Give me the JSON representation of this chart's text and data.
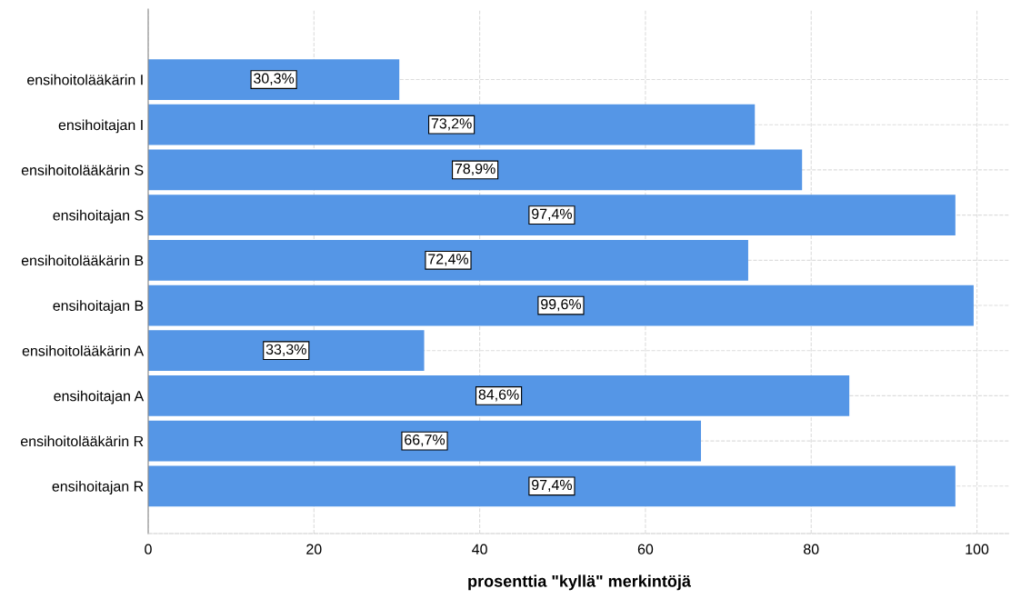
{
  "chart_data": {
    "type": "bar",
    "orientation": "horizontal",
    "xlabel": "prosenttia \"kyllä\" merkintöjä",
    "categories": [
      "ensihoitolääkärin I",
      "ensihoitajan I",
      "ensihoitolääkärin S",
      "ensihoitajan S",
      "ensihoitolääkärin B",
      "ensihoitajan B",
      "ensihoitolääkärin A",
      "ensihoitajan A",
      "ensihoitolääkärin R",
      "ensihoitajan R"
    ],
    "values": [
      30.3,
      73.2,
      78.9,
      97.4,
      72.4,
      99.6,
      33.3,
      84.6,
      66.7,
      97.4
    ],
    "value_labels": [
      "30,3%",
      "73,2%",
      "78,9%",
      "97,4%",
      "72,4%",
      "99,6%",
      "33,3%",
      "84,6%",
      "66,7%",
      "97,4%"
    ],
    "color": "#5596e6",
    "xlim": [
      0,
      104
    ],
    "xticks": [
      0,
      20,
      40,
      60,
      80,
      100
    ],
    "grid": true,
    "line_style": "dashed"
  }
}
